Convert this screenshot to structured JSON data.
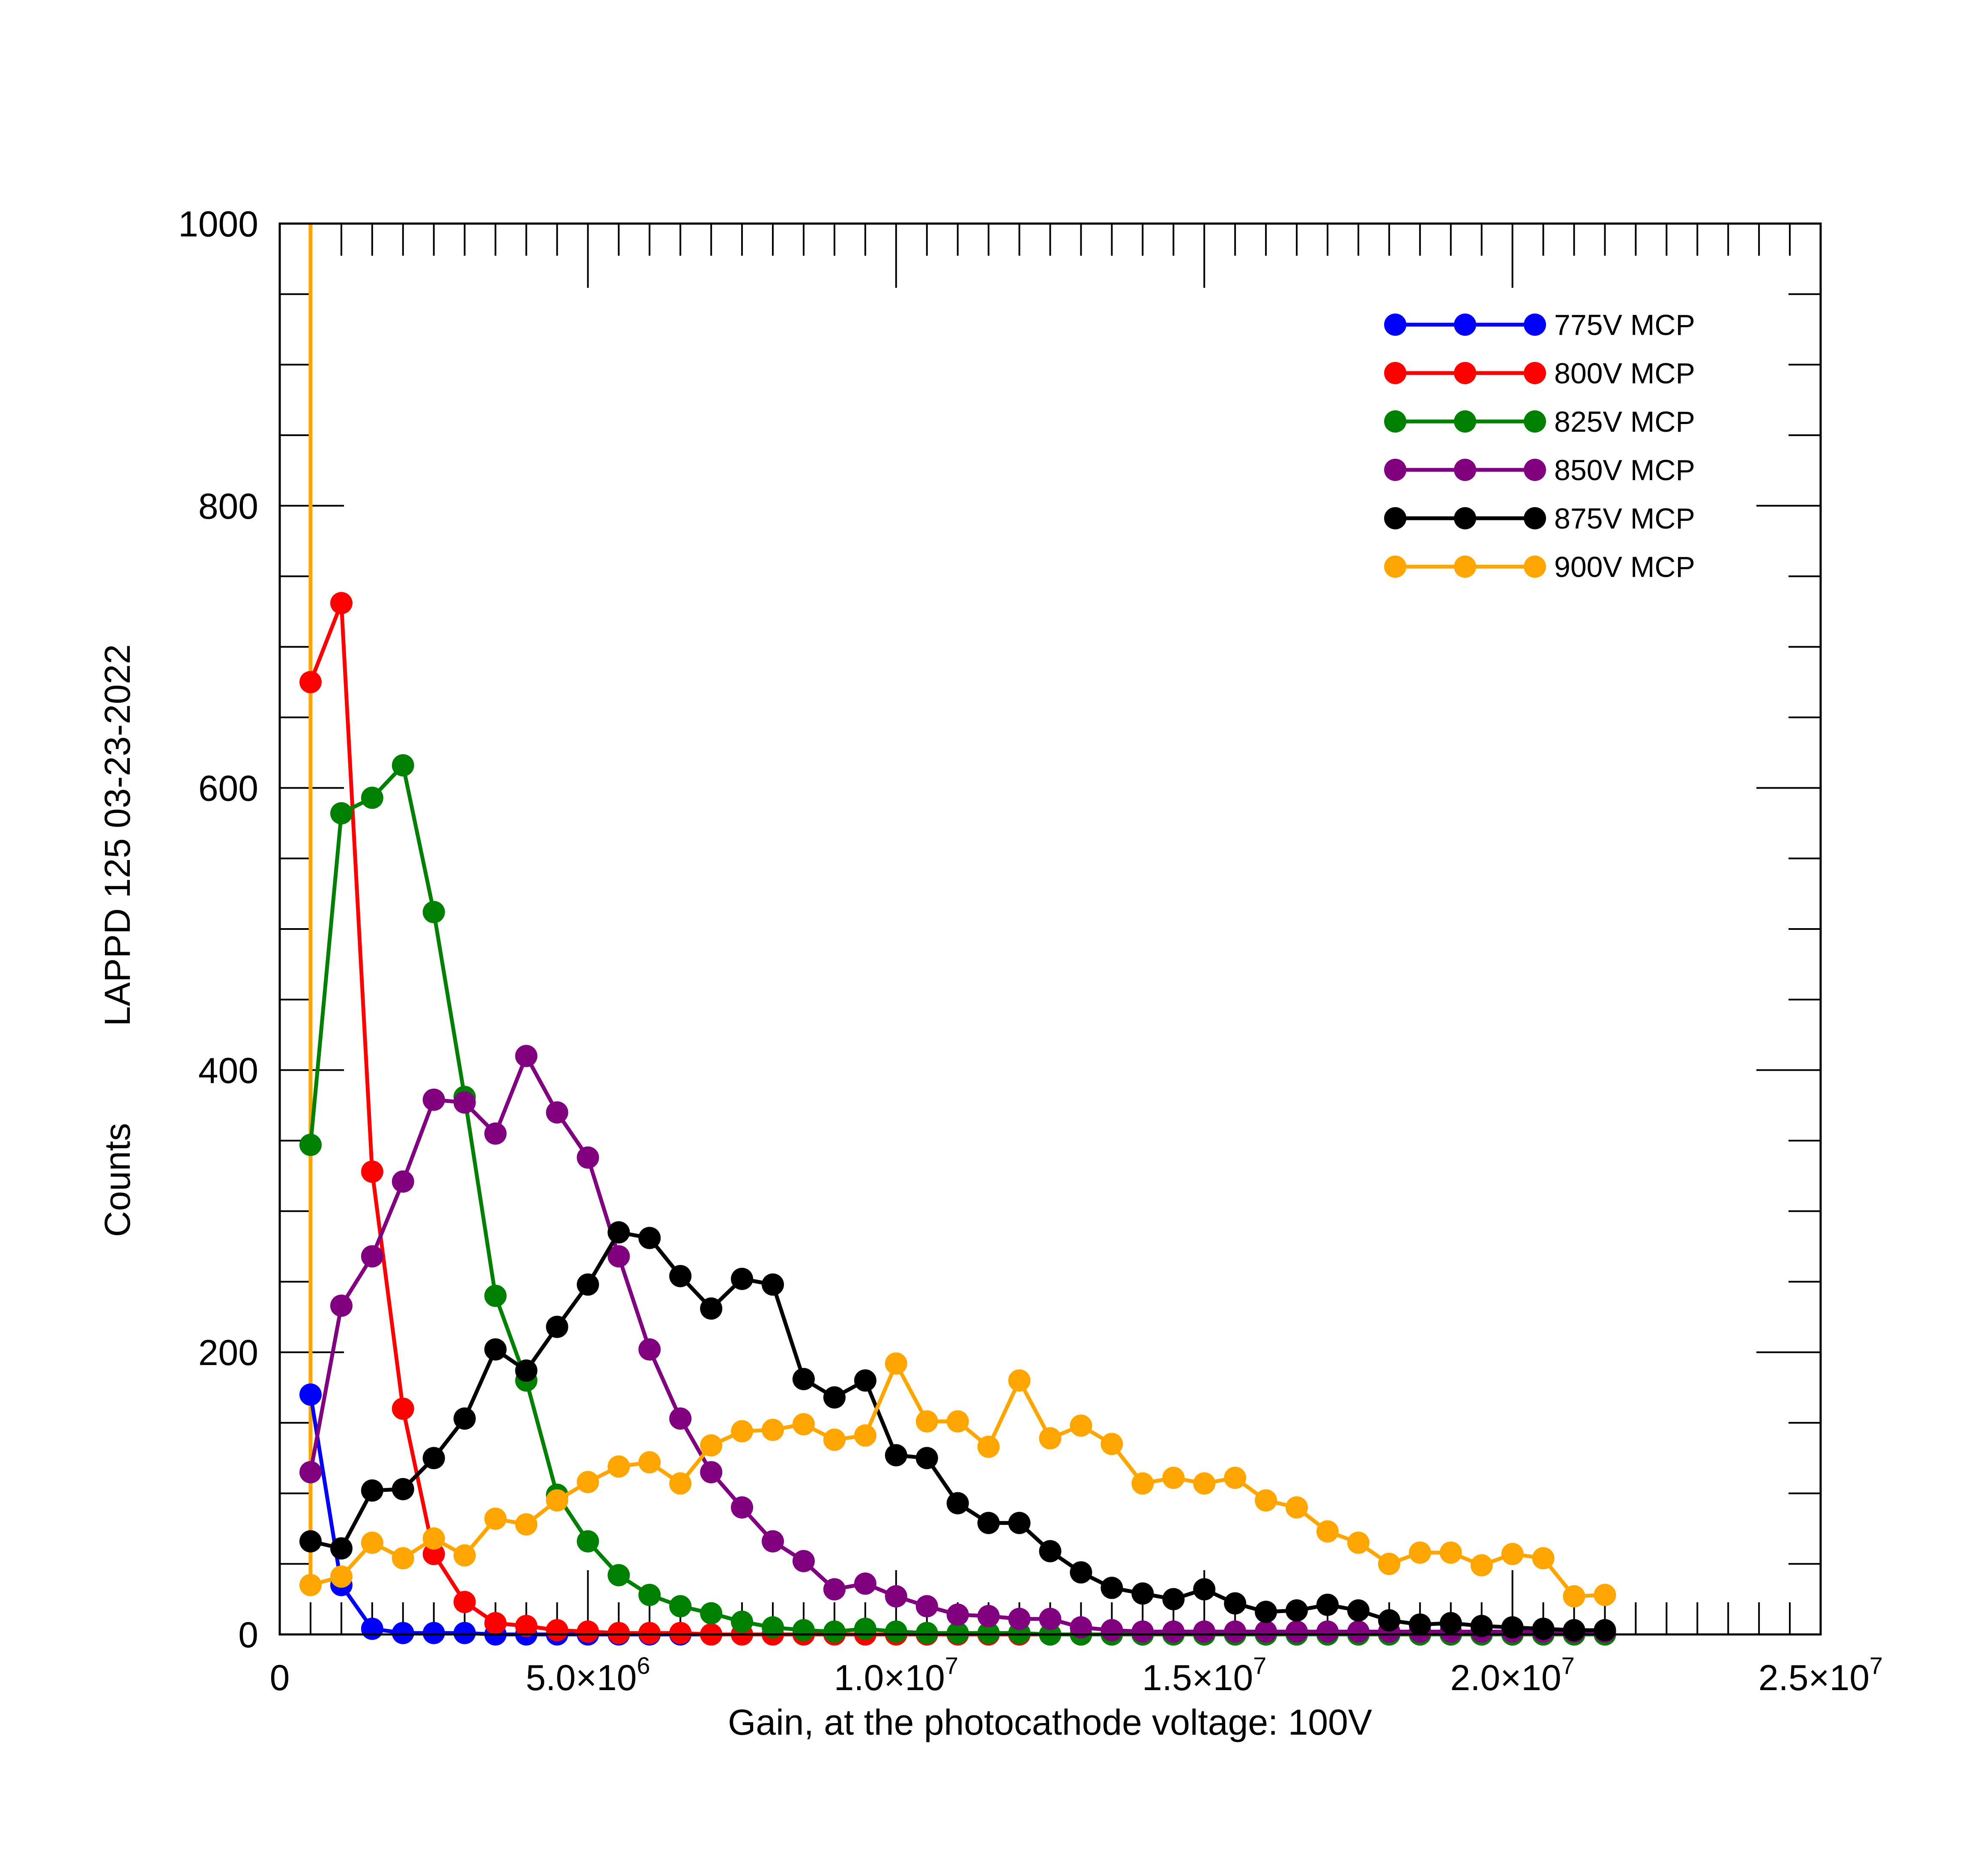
{
  "chart_data": {
    "type": "line",
    "title": "",
    "xlabel": "Gain, at the photocathode voltage: 100V",
    "ylabel": "Counts",
    "ylabel_extra": "LAPPD 125  03-23-2022",
    "xlim": [
      0,
      25000000
    ],
    "ylim": [
      0,
      1000
    ],
    "x_ticks": [
      {
        "value": 0,
        "mantissa": "0",
        "exponent": ""
      },
      {
        "value": 5000000,
        "mantissa": "5.0×10",
        "exponent": "6"
      },
      {
        "value": 10000000,
        "mantissa": "1.0×10",
        "exponent": "7"
      },
      {
        "value": 15000000,
        "mantissa": "1.5×10",
        "exponent": "7"
      },
      {
        "value": 20000000,
        "mantissa": "2.0×10",
        "exponent": "7"
      },
      {
        "value": 25000000,
        "mantissa": "2.5×10",
        "exponent": "7"
      }
    ],
    "y_ticks": [
      "0",
      "200",
      "400",
      "600",
      "800",
      "1000"
    ],
    "legend_position": "top-right",
    "x": [
      500000,
      1000000,
      1500000,
      2000000,
      2500000,
      3000000,
      3500000,
      4000000,
      4500000,
      5000000,
      5500000,
      6000000,
      6500000,
      7000000,
      7500000,
      8000000,
      8500000,
      9000000,
      9500000,
      10000000,
      10500000,
      11000000,
      11500000,
      12000000,
      12500000,
      13000000,
      13500000,
      14000000,
      14500000,
      15000000,
      15500000,
      16000000,
      16500000,
      17000000,
      17500000,
      18000000,
      18500000,
      19000000,
      19500000,
      20000000,
      20500000,
      21000000,
      21500000
    ],
    "series": [
      {
        "name": "775V MCP",
        "color": "#0000ff",
        "values": [
          170,
          35,
          4,
          1,
          1,
          1,
          0,
          0,
          0,
          0,
          0,
          0,
          0,
          0,
          0,
          0,
          0,
          0,
          0,
          0,
          0,
          0,
          0,
          0,
          0,
          0,
          0,
          0,
          0,
          0,
          0,
          0,
          0,
          0,
          0,
          0,
          0,
          0,
          0,
          0,
          0,
          0,
          0
        ]
      },
      {
        "name": "800V MCP",
        "color": "#ff0000",
        "values": [
          675,
          731,
          328,
          160,
          57,
          23,
          8,
          6,
          3,
          2,
          1,
          1,
          1,
          0,
          0,
          0,
          0,
          0,
          0,
          0,
          0,
          0,
          0,
          0,
          0,
          0,
          0,
          0,
          0,
          0,
          0,
          0,
          0,
          0,
          0,
          0,
          0,
          0,
          0,
          0,
          0,
          0,
          0
        ]
      },
      {
        "name": "825V MCP",
        "color": "#008000",
        "values": [
          347,
          582,
          593,
          616,
          512,
          381,
          240,
          180,
          99,
          66,
          42,
          28,
          20,
          15,
          9,
          5,
          3,
          2,
          4,
          2,
          1,
          1,
          1,
          1,
          0,
          0,
          0,
          0,
          0,
          0,
          0,
          0,
          0,
          0,
          0,
          0,
          0,
          0,
          0,
          0,
          0,
          0,
          0
        ]
      },
      {
        "name": "850V MCP",
        "color": "#800080",
        "values": [
          115,
          233,
          268,
          321,
          379,
          377,
          355,
          410,
          370,
          338,
          268,
          202,
          153,
          115,
          90,
          66,
          52,
          32,
          36,
          27,
          20,
          14,
          13,
          11,
          11,
          5,
          3,
          2,
          2,
          2,
          2,
          2,
          2,
          2,
          2,
          2,
          2,
          2,
          2,
          2,
          2,
          2,
          2
        ]
      },
      {
        "name": "875V MCP",
        "color": "#000000",
        "values": [
          66,
          61,
          102,
          103,
          125,
          153,
          202,
          187,
          218,
          248,
          285,
          281,
          254,
          231,
          252,
          248,
          181,
          168,
          180,
          127,
          125,
          93,
          79,
          79,
          59,
          44,
          33,
          29,
          25,
          32,
          22,
          16,
          17,
          21,
          17,
          10,
          7,
          8,
          6,
          5,
          4,
          3,
          3
        ]
      },
      {
        "name": "900V MCP",
        "color": "#ffa500",
        "values": [
          35,
          41,
          65,
          54,
          68,
          56,
          82,
          78,
          95,
          108,
          119,
          122,
          107,
          134,
          144,
          145,
          149,
          138,
          141,
          192,
          151,
          151,
          133,
          180,
          139,
          148,
          135,
          107,
          111,
          107,
          111,
          95,
          90,
          73,
          65,
          50,
          58,
          58,
          49,
          57,
          54,
          27,
          28
        ]
      }
    ],
    "spike": {
      "x": 500000,
      "color": "#ffa500"
    }
  }
}
